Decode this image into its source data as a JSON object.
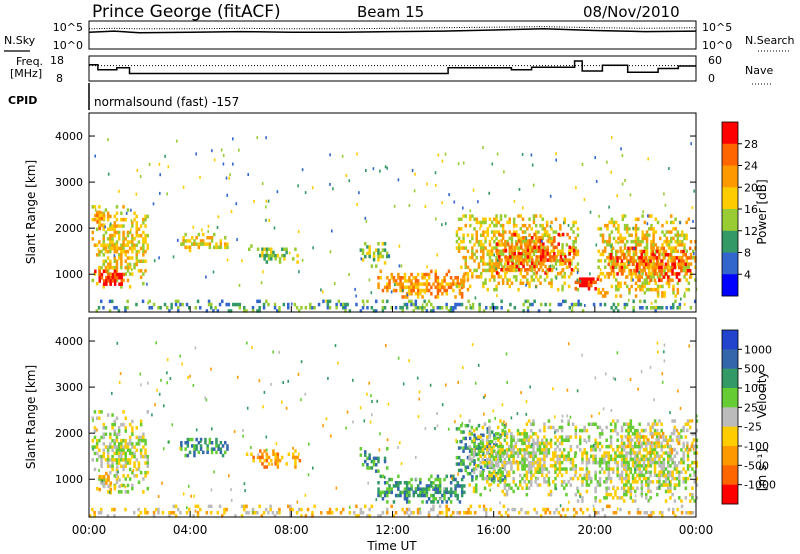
{
  "header": {
    "station": "Prince George (fitACF)",
    "beam": "Beam 15",
    "date": "08/Nov/2010"
  },
  "noise_panel": {
    "left_label": "N.Sky",
    "right_label": "N.Search",
    "left_ticks": [
      "10^5",
      "10^0"
    ],
    "right_ticks": [
      "10^5",
      "10^0"
    ]
  },
  "freq_panel": {
    "left_label_1": "Freq.",
    "left_label_2": "[MHz]",
    "right_label": "Nave",
    "left_ticks": [
      "18",
      "8"
    ],
    "right_ticks": [
      "60",
      "0"
    ]
  },
  "cpid": {
    "label": "CPID",
    "value": "normalsound (fast) -157"
  },
  "power_colorbar": {
    "label": "Power [dB]",
    "ticks": [
      "28",
      "24",
      "20",
      "16",
      "12",
      "8",
      "4"
    ],
    "colors": [
      "#ff0000",
      "#ff6600",
      "#ff9900",
      "#ffcc00",
      "#99cc33",
      "#339966",
      "#3366cc",
      "#0000ff"
    ]
  },
  "velocity_colorbar": {
    "label": "Velocity",
    "unit": "[m s⁻¹]",
    "ticks": [
      "1000",
      "500",
      "100",
      "25",
      "-25",
      "-100",
      "-500",
      "-1000"
    ],
    "colors": [
      "#2244cc",
      "#3366aa",
      "#339966",
      "#66cc33",
      "#bbbbbb",
      "#ffcc00",
      "#ff9900",
      "#ff6600",
      "#ff0000"
    ]
  },
  "chart_data": [
    {
      "type": "line",
      "name": "noise",
      "x": [
        0,
        1,
        2,
        4,
        6,
        8,
        10,
        12,
        14,
        16,
        18,
        20,
        22,
        24
      ],
      "series": [
        {
          "name": "N.Sky",
          "values": [
            3.0,
            3.2,
            2.9,
            3.0,
            3.1,
            3.0,
            3.0,
            3.1,
            3.2,
            3.4,
            3.6,
            3.3,
            3.1,
            3.2
          ]
        },
        {
          "name": "N.Search",
          "values": [
            3.6,
            3.7,
            3.6,
            3.6,
            3.7,
            3.6,
            3.6,
            3.7,
            3.8,
            3.9,
            4.0,
            3.8,
            3.7,
            3.8
          ]
        }
      ]
    },
    {
      "type": "line",
      "name": "frequency",
      "ylabel": "Freq. [MHz]",
      "ylim": [
        8,
        18
      ],
      "segments": [
        {
          "x0": 0.0,
          "x1": 0.35,
          "v": 14.5
        },
        {
          "x0": 0.35,
          "x1": 1.1,
          "v": 12.5
        },
        {
          "x0": 1.1,
          "x1": 1.6,
          "v": 13.3
        },
        {
          "x0": 1.6,
          "x1": 14.2,
          "v": 11.0
        },
        {
          "x0": 14.2,
          "x1": 16.7,
          "v": 13.3
        },
        {
          "x0": 16.7,
          "x1": 17.5,
          "v": 12.5
        },
        {
          "x0": 17.5,
          "x1": 19.2,
          "v": 13.5
        },
        {
          "x0": 19.2,
          "x1": 19.5,
          "v": 16.0
        },
        {
          "x0": 19.5,
          "x1": 20.3,
          "v": 12.0
        },
        {
          "x0": 20.3,
          "x1": 21.3,
          "v": 14.3
        },
        {
          "x0": 21.3,
          "x1": 22.5,
          "v": 11.5
        },
        {
          "x0": 22.5,
          "x1": 23.3,
          "v": 13.0
        },
        {
          "x0": 23.3,
          "x1": 24.0,
          "v": 14.0
        }
      ],
      "nave_dotted": 37
    },
    {
      "type": "heatmap",
      "name": "power",
      "xlabel": "",
      "ylabel": "Slant Range [km]",
      "xlim": [
        0,
        24
      ],
      "ylim": [
        180,
        4500
      ],
      "yticks": [
        1000,
        2000,
        3000,
        4000
      ],
      "patches": [
        {
          "t0": 0.1,
          "t1": 2.3,
          "r0": 700,
          "r1": 2500,
          "level": 4,
          "density": 0.55
        },
        {
          "t0": 0.2,
          "t1": 1.4,
          "r0": 800,
          "r1": 1100,
          "level": 7,
          "density": 0.75
        },
        {
          "t0": 0.2,
          "t1": 0.6,
          "r0": 2000,
          "r1": 2450,
          "level": 5,
          "density": 0.6
        },
        {
          "t0": 3.6,
          "t1": 5.5,
          "r0": 1550,
          "r1": 1900,
          "level": 4,
          "density": 0.6
        },
        {
          "t0": 6.2,
          "t1": 8.3,
          "r0": 1300,
          "r1": 1650,
          "level": 3,
          "density": 0.4
        },
        {
          "t0": 10.7,
          "t1": 11.8,
          "r0": 1200,
          "r1": 1700,
          "level": 3,
          "density": 0.45
        },
        {
          "t0": 11.4,
          "t1": 14.8,
          "r0": 500,
          "r1": 1100,
          "level": 5,
          "density": 0.6
        },
        {
          "t0": 14.5,
          "t1": 19.3,
          "r0": 700,
          "r1": 2300,
          "level": 4,
          "density": 0.55
        },
        {
          "t0": 16.0,
          "t1": 19.2,
          "r0": 1000,
          "r1": 1900,
          "level": 6,
          "density": 0.5
        },
        {
          "t0": 19.2,
          "t1": 20.1,
          "r0": 700,
          "r1": 1000,
          "level": 7,
          "density": 0.9
        },
        {
          "t0": 20.1,
          "t1": 24.0,
          "r0": 500,
          "r1": 2300,
          "level": 4,
          "density": 0.55
        },
        {
          "t0": 20.5,
          "t1": 23.8,
          "r0": 900,
          "r1": 1600,
          "level": 6,
          "density": 0.55
        },
        {
          "t0": 0.0,
          "t1": 24.0,
          "r0": 200,
          "r1": 450,
          "level": 2,
          "density": 0.35
        }
      ]
    },
    {
      "type": "heatmap",
      "name": "velocity",
      "xlabel": "Time UT",
      "ylabel": "Slant Range [km]",
      "xlim": [
        0,
        24
      ],
      "ylim": [
        180,
        4500
      ],
      "xticks": [
        "00:00",
        "04:00",
        "08:00",
        "12:00",
        "16:00",
        "20:00",
        "00:00"
      ],
      "yticks": [
        1000,
        2000,
        3000,
        4000
      ],
      "patches": [
        {
          "t0": 0.1,
          "t1": 2.3,
          "r0": 700,
          "r1": 2500,
          "level": 4,
          "density": 0.55
        },
        {
          "t0": 0.2,
          "t1": 1.2,
          "r0": 700,
          "r1": 1300,
          "level": 3,
          "density": 0.35
        },
        {
          "t0": 3.6,
          "t1": 5.5,
          "r0": 1550,
          "r1": 1900,
          "level": 6,
          "density": 0.6
        },
        {
          "t0": 6.2,
          "t1": 8.3,
          "r0": 1300,
          "r1": 1650,
          "level": 2,
          "density": 0.4
        },
        {
          "t0": 10.7,
          "t1": 11.8,
          "r0": 1200,
          "r1": 1700,
          "level": 6,
          "density": 0.45
        },
        {
          "t0": 11.4,
          "t1": 14.8,
          "r0": 500,
          "r1": 1100,
          "level": 6,
          "density": 0.65
        },
        {
          "t0": 14.5,
          "t1": 16.5,
          "r0": 1000,
          "r1": 2200,
          "level": 6,
          "density": 0.5
        },
        {
          "t0": 15.0,
          "t1": 19.3,
          "r0": 700,
          "r1": 2300,
          "level": 4,
          "density": 0.6
        },
        {
          "t0": 19.2,
          "t1": 24.0,
          "r0": 500,
          "r1": 2300,
          "level": 4,
          "density": 0.6
        },
        {
          "t0": 21.0,
          "t1": 24.0,
          "r0": 1600,
          "r1": 2100,
          "level": 3,
          "density": 0.35
        },
        {
          "t0": 0.0,
          "t1": 24.0,
          "r0": 200,
          "r1": 450,
          "level": 3,
          "density": 0.3
        }
      ]
    }
  ]
}
